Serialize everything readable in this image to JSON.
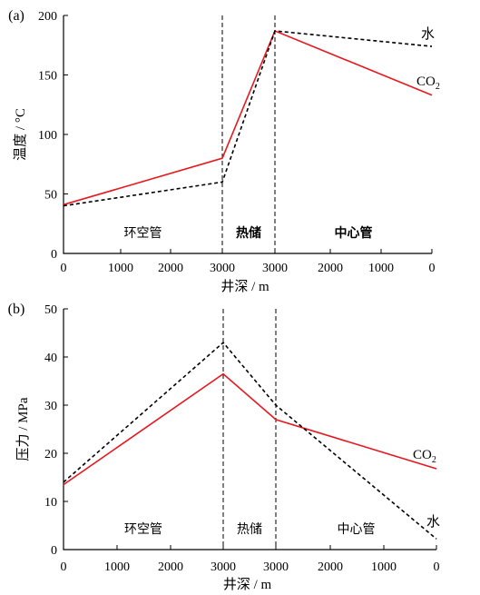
{
  "chart_data": [
    {
      "panel_label": "(a)",
      "type": "line",
      "ylabel": "温度 / °C",
      "xlabel": "井深 / m",
      "ylim": [
        0,
        200
      ],
      "yticks": [
        "0",
        "50",
        "100",
        "150",
        "200"
      ],
      "xticks": [
        "0",
        "1000",
        "2000",
        "3000",
        "3000",
        "2000",
        "1000",
        "0"
      ],
      "segments": [
        {
          "label": "环空管",
          "bold": false
        },
        {
          "label": "热储",
          "bold": true
        },
        {
          "label": "中心管",
          "bold": true
        }
      ],
      "series": [
        {
          "name": "CO",
          "name_sub": "2",
          "color": "#e8181f",
          "style": "solid",
          "points": [
            [
              0,
              41
            ],
            [
              1,
              80
            ],
            [
              2,
              187
            ],
            [
              3,
              133
            ]
          ]
        },
        {
          "name": "水",
          "name_sub": "",
          "color": "#000000",
          "style": "dashed",
          "points": [
            [
              0,
              40
            ],
            [
              1,
              60
            ],
            [
              2,
              187
            ],
            [
              3,
              174
            ]
          ]
        }
      ]
    },
    {
      "panel_label": "(b)",
      "type": "line",
      "ylabel": "压力 / MPa",
      "xlabel": "井深 / m",
      "ylim": [
        0,
        50
      ],
      "yticks": [
        "0",
        "10",
        "20",
        "30",
        "40",
        "50"
      ],
      "xticks": [
        "0",
        "1000",
        "2000",
        "3000",
        "3000",
        "2000",
        "1000",
        "0"
      ],
      "segments": [
        {
          "label": "环空管",
          "bold": false
        },
        {
          "label": "热储",
          "bold": false
        },
        {
          "label": "中心管",
          "bold": false
        }
      ],
      "series": [
        {
          "name": "CO",
          "name_sub": "2",
          "color": "#e8181f",
          "style": "solid",
          "points": [
            [
              0,
              13.5
            ],
            [
              1,
              36.5
            ],
            [
              2,
              27
            ],
            [
              3,
              16.8
            ]
          ]
        },
        {
          "name": "水",
          "name_sub": "",
          "color": "#000000",
          "style": "dashed",
          "points": [
            [
              0,
              14
            ],
            [
              1,
              43
            ],
            [
              2,
              30
            ],
            [
              3,
              2.2
            ]
          ]
        }
      ]
    }
  ]
}
